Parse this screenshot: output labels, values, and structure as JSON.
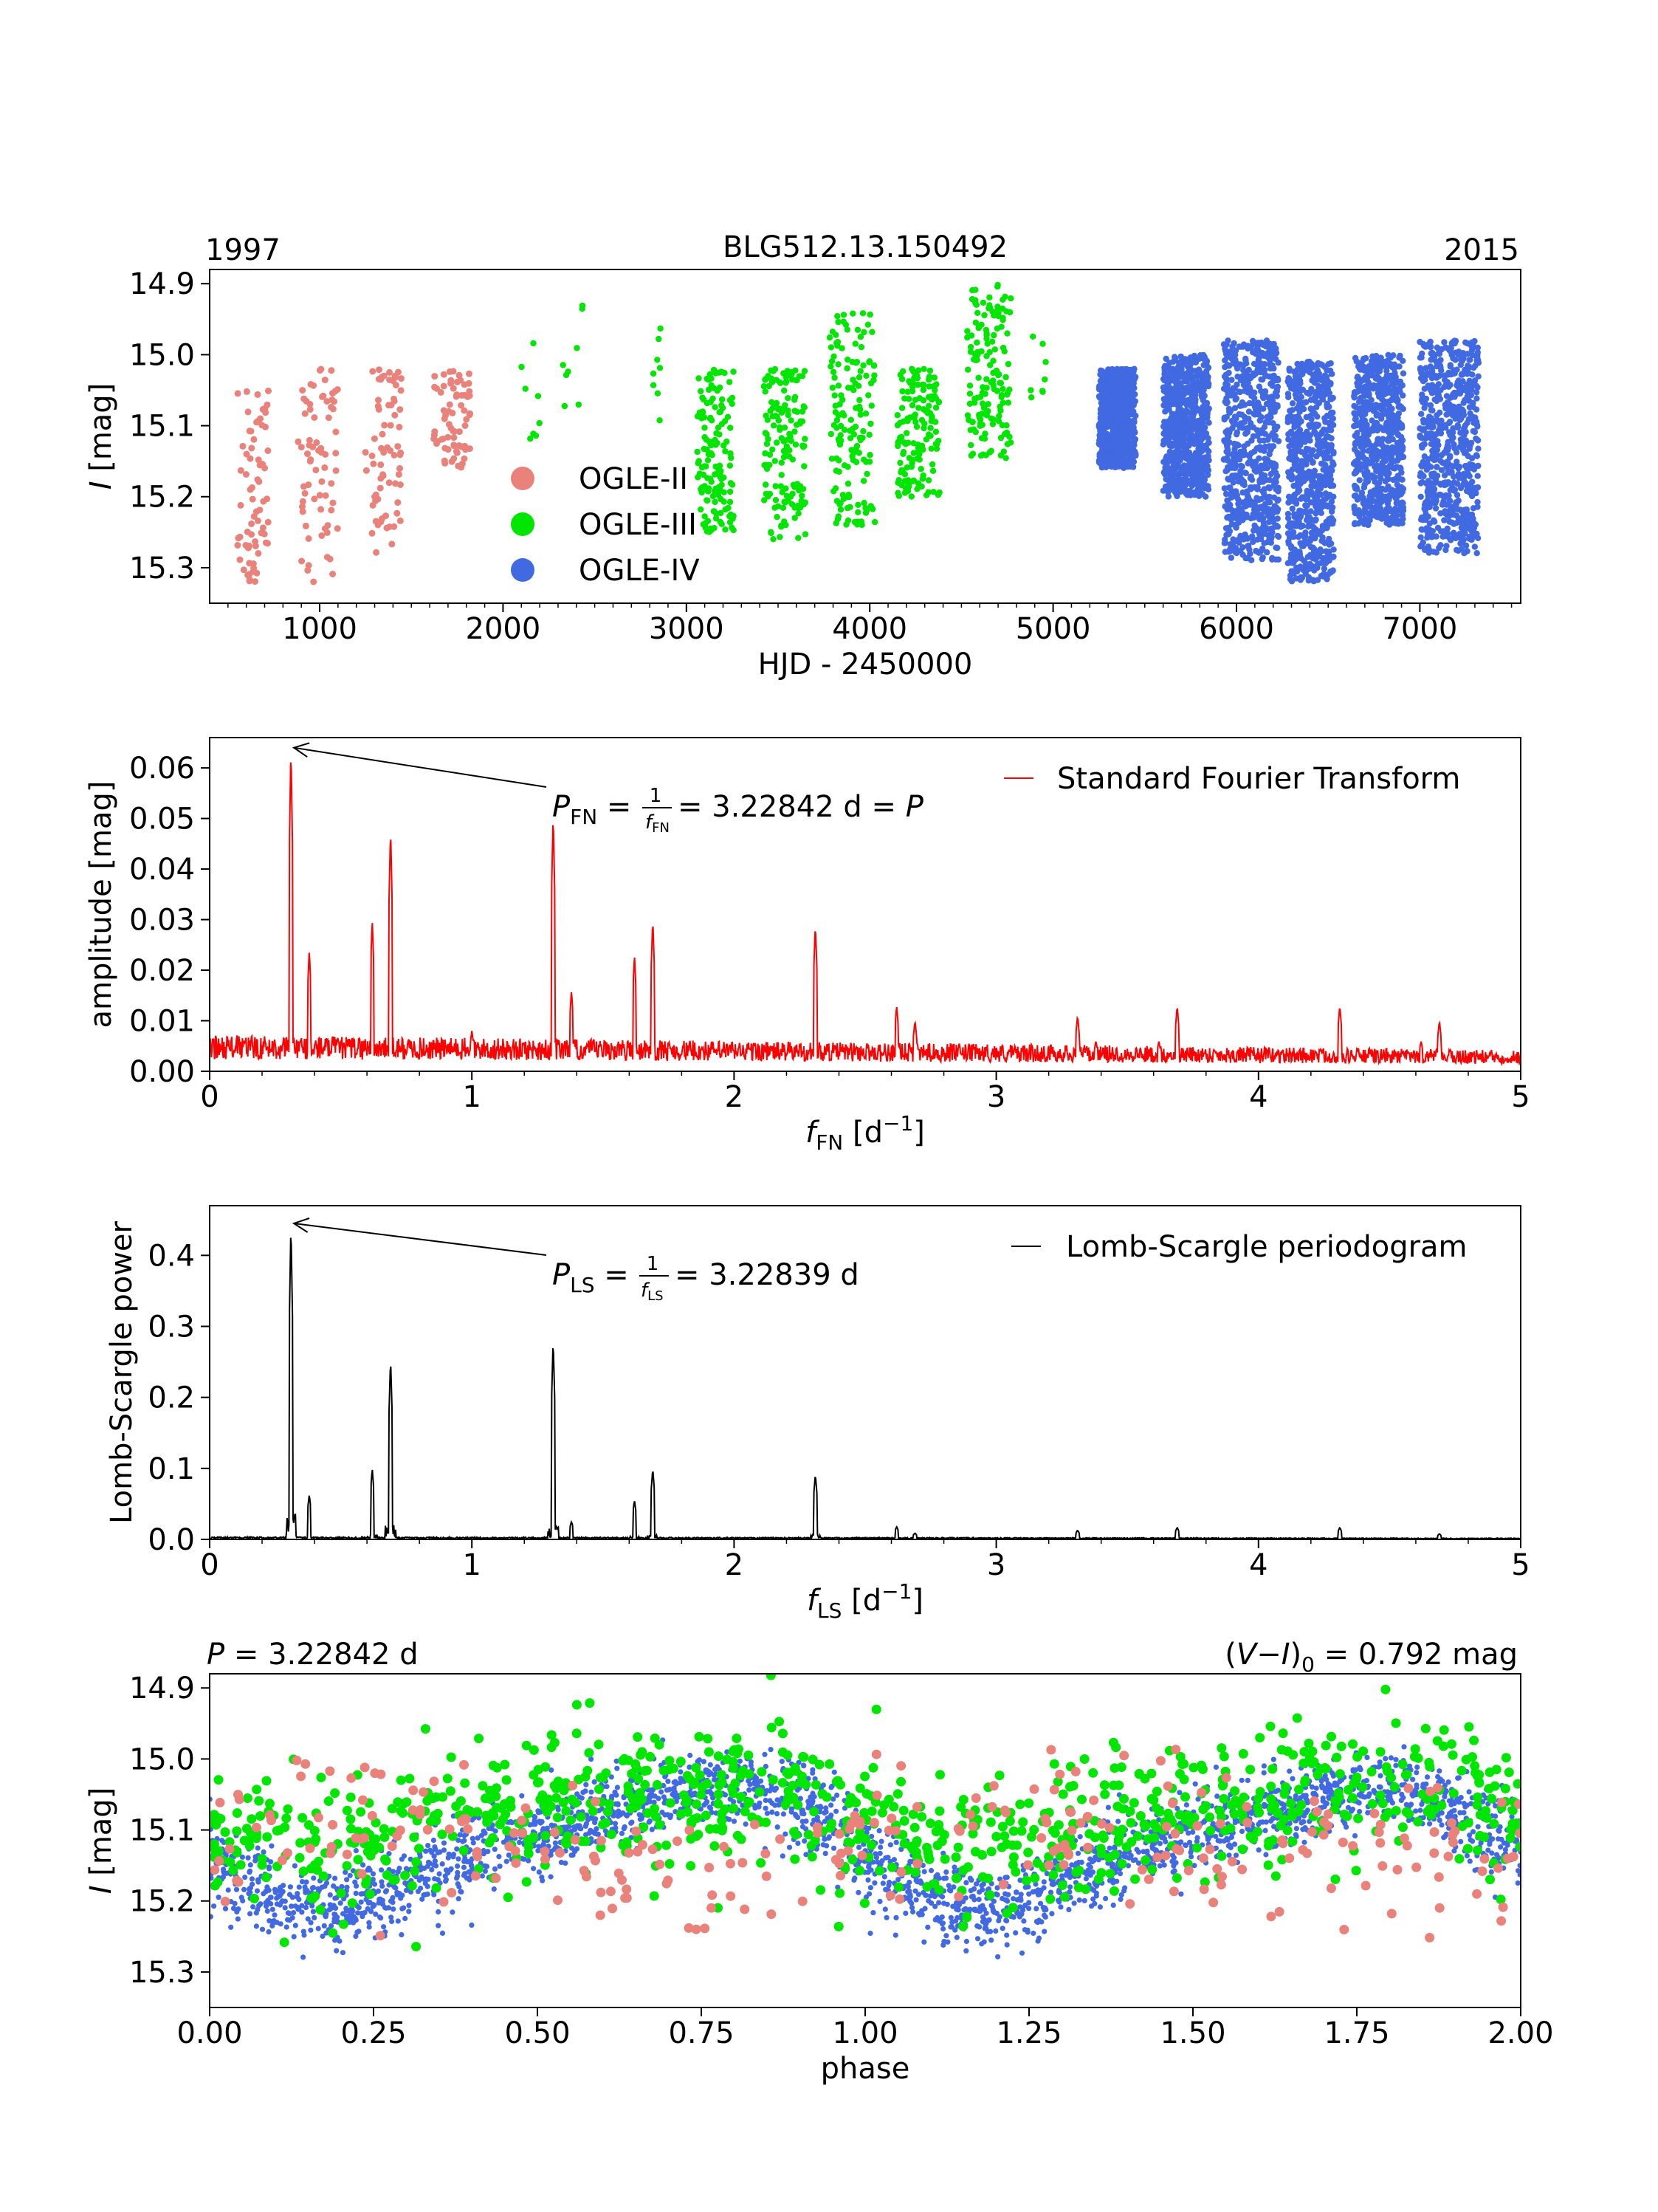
{
  "chart_data": [
    {
      "id": "lightcurve",
      "type": "scatter",
      "title": "BLG512.13.150492",
      "corner_left": "1997",
      "corner_right": "2015",
      "xlabel": "HJD - 2450000",
      "ylabel_var": "I",
      "ylabel_unit": "[mag]",
      "xlim": [
        400,
        7550
      ],
      "ylim": [
        15.35,
        14.88
      ],
      "xticks": [
        1000,
        2000,
        3000,
        4000,
        5000,
        6000,
        7000
      ],
      "xtick_labels": [
        "1000",
        "2000",
        "3000",
        "4000",
        "5000",
        "6000",
        "7000"
      ],
      "yticks": [
        14.9,
        15.0,
        15.1,
        15.2,
        15.3
      ],
      "ytick_labels": [
        "14.9",
        "15.0",
        "15.1",
        "15.2",
        "15.3"
      ],
      "legend_position": "lower-left",
      "series": [
        {
          "name": "OGLE-II",
          "color": "#e9827b",
          "seasons": [
            [
              550,
              720,
              15.05,
              15.33
            ],
            [
              880,
              1100,
              15.02,
              15.33
            ],
            [
              1250,
              1450,
              15.02,
              15.28
            ],
            [
              1620,
              1820,
              15.02,
              15.16
            ]
          ]
        },
        {
          "name": "OGLE-III",
          "color": "#00e600",
          "seasons": [
            [
              2100,
              2200,
              14.97,
              15.12
            ],
            [
              2320,
              2450,
              14.9,
              15.1
            ],
            [
              2800,
              2870,
              14.96,
              15.1
            ],
            [
              3060,
              3260,
              15.02,
              15.25
            ],
            [
              3420,
              3650,
              15.02,
              15.26
            ],
            [
              3780,
              4030,
              14.94,
              15.24
            ],
            [
              4150,
              4380,
              15.02,
              15.2
            ],
            [
              4530,
              4770,
              14.9,
              15.15
            ],
            [
              4870,
              4970,
              14.96,
              15.23
            ]
          ]
        },
        {
          "name": "OGLE-IV",
          "color": "#4169e1",
          "seasons": [
            [
              5250,
              5450,
              15.02,
              15.16
            ],
            [
              5600,
              5850,
              15.0,
              15.2
            ],
            [
              5930,
              6230,
              14.98,
              15.29
            ],
            [
              6280,
              6530,
              15.01,
              15.32
            ],
            [
              6640,
              6910,
              15.0,
              15.24
            ],
            [
              7000,
              7320,
              14.98,
              15.28
            ]
          ]
        }
      ]
    },
    {
      "id": "fourier",
      "type": "line",
      "legend": "Standard Fourier Transform",
      "color": "#ff0000",
      "xlabel_main": "f",
      "xlabel_sub": "FN",
      "xlabel_unit": "[d",
      "xlabel_exp": "−1",
      "ylabel": "amplitude [mag]",
      "xlim": [
        0,
        5
      ],
      "ylim": [
        0,
        0.066
      ],
      "xticks": [
        0,
        1,
        2,
        3,
        4,
        5
      ],
      "xtick_labels": [
        "0",
        "1",
        "2",
        "3",
        "4",
        "5"
      ],
      "yticks": [
        0,
        0.01,
        0.02,
        0.03,
        0.04,
        0.05,
        0.06
      ],
      "ytick_labels": [
        "0.00",
        "0.01",
        "0.02",
        "0.03",
        "0.04",
        "0.05",
        "0.06"
      ],
      "noise_level": 0.004,
      "peaks": [
        [
          0.31,
          0.064
        ],
        [
          0.38,
          0.024
        ],
        [
          0.62,
          0.03
        ],
        [
          0.69,
          0.048
        ],
        [
          1.0,
          0.008
        ],
        [
          1.31,
          0.051
        ],
        [
          1.38,
          0.016
        ],
        [
          1.62,
          0.023
        ],
        [
          1.69,
          0.03
        ],
        [
          2.31,
          0.029
        ],
        [
          2.62,
          0.013
        ],
        [
          2.69,
          0.01
        ],
        [
          3.31,
          0.011
        ],
        [
          3.38,
          0.006
        ],
        [
          3.62,
          0.006
        ],
        [
          3.69,
          0.013
        ],
        [
          4.31,
          0.013
        ],
        [
          4.62,
          0.006
        ],
        [
          4.69,
          0.01
        ]
      ],
      "annotation": {
        "x": 0.31,
        "y": 0.064,
        "symbol": "P",
        "sub": "FN",
        "frac_num": "1",
        "frac_den": "f",
        "frac_den_sub": "FN",
        "value": "= 3.22842 d =",
        "tail": "P"
      }
    },
    {
      "id": "lombscargle",
      "type": "line",
      "legend": "Lomb-Scargle periodogram",
      "color": "#000000",
      "xlabel_main": "f",
      "xlabel_sub": "LS",
      "xlabel_unit": "[d",
      "xlabel_exp": "−1",
      "ylabel": "Lomb-Scargle power",
      "xlim": [
        0,
        5
      ],
      "ylim": [
        0,
        0.47
      ],
      "xticks": [
        0,
        1,
        2,
        3,
        4,
        5
      ],
      "xtick_labels": [
        "0",
        "1",
        "2",
        "3",
        "4",
        "5"
      ],
      "yticks": [
        0,
        0.1,
        0.2,
        0.3,
        0.4
      ],
      "ytick_labels": [
        "0.0",
        "0.1",
        "0.2",
        "0.3",
        "0.4"
      ],
      "noise_level": 0.004,
      "peaks": [
        [
          0.31,
          0.445
        ],
        [
          0.38,
          0.063
        ],
        [
          0.62,
          0.1
        ],
        [
          0.69,
          0.255
        ],
        [
          1.31,
          0.282
        ],
        [
          1.38,
          0.025
        ],
        [
          1.62,
          0.055
        ],
        [
          1.69,
          0.1
        ],
        [
          2.31,
          0.092
        ],
        [
          2.62,
          0.018
        ],
        [
          2.69,
          0.009
        ],
        [
          3.31,
          0.013
        ],
        [
          3.69,
          0.017
        ],
        [
          4.31,
          0.017
        ],
        [
          4.69,
          0.008
        ]
      ],
      "annotation": {
        "x": 0.31,
        "y": 0.445,
        "symbol": "P",
        "sub": "LS",
        "frac_num": "1",
        "frac_den": "f",
        "frac_den_sub": "LS",
        "value": "= 3.22839 d",
        "tail": ""
      }
    },
    {
      "id": "phased",
      "type": "scatter",
      "xlabel": "phase",
      "ylabel_var": "I",
      "ylabel_unit": "[mag]",
      "xlim": [
        0,
        2
      ],
      "ylim": [
        15.35,
        14.88
      ],
      "xticks": [
        0,
        0.25,
        0.5,
        0.75,
        1.0,
        1.25,
        1.5,
        1.75,
        2.0
      ],
      "xtick_labels": [
        "0.00",
        "0.25",
        "0.50",
        "0.75",
        "1.00",
        "1.25",
        "1.50",
        "1.75",
        "2.00"
      ],
      "yticks": [
        14.9,
        15.0,
        15.1,
        15.2,
        15.3
      ],
      "ytick_labels": [
        "14.9",
        "15.0",
        "15.1",
        "15.2",
        "15.3"
      ],
      "left_label": {
        "var": "P",
        "value": "= 3.22842 d"
      },
      "right_label": {
        "open": "(",
        "var1": "V",
        "minus": "−",
        "var2": "I",
        "close": ")",
        "sub": "0",
        "value": "= 0.792 mag"
      },
      "period_days": 3.22842,
      "mean_mag": 15.12,
      "amplitude_mag": 0.09
    }
  ]
}
